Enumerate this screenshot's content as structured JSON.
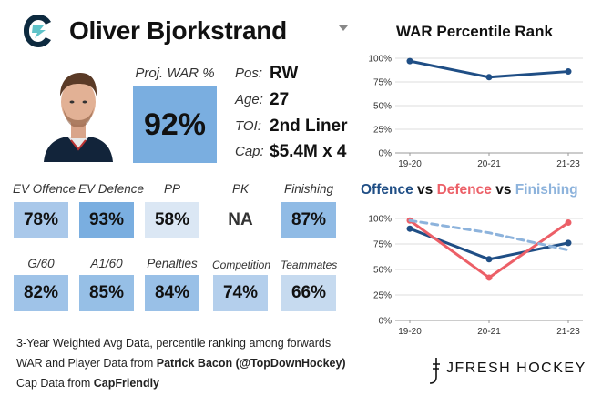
{
  "header": {
    "player_name": "Oliver Bjorkstrand",
    "team_logo_icon": "kraken-logo-icon",
    "dropdown_icon": "chevron-down-icon"
  },
  "projected_war": {
    "label": "Proj. WAR %",
    "value": "92%"
  },
  "player_info": [
    {
      "label": "Pos:",
      "value": "RW"
    },
    {
      "label": "Age:",
      "value": "27"
    },
    {
      "label": "TOI:",
      "value": "2nd Liner"
    },
    {
      "label": "Cap:",
      "value": "$5.4M x 4"
    }
  ],
  "metrics_row1": [
    {
      "label": "EV Offence",
      "value": "78%",
      "color": "#a9c8ea"
    },
    {
      "label": "EV Defence",
      "value": "93%",
      "color": "#7aaee0"
    },
    {
      "label": "PP",
      "value": "58%",
      "color": "#dbe7f4"
    },
    {
      "label": "PK",
      "value": "NA",
      "color": "#ffffff"
    },
    {
      "label": "Finishing",
      "value": "87%",
      "color": "#90bbe5"
    }
  ],
  "metrics_row2": [
    {
      "label": "G/60",
      "value": "82%",
      "color": "#9fc3e8"
    },
    {
      "label": "A1/60",
      "value": "85%",
      "color": "#96bfe6"
    },
    {
      "label": "Penalties",
      "value": "84%",
      "color": "#99c0e7"
    },
    {
      "label": "Competition",
      "value": "74%",
      "color": "#b4cfec"
    },
    {
      "label": "Teammates",
      "value": "66%",
      "color": "#c6daef"
    }
  ],
  "footer": {
    "line1": "3-Year Weighted Avg Data, percentile ranking among forwards",
    "line2_prefix": "WAR and Player Data from ",
    "line2_bold": "Patrick Bacon (@TopDownHockey)",
    "line3_prefix": "Cap Data from ",
    "line3_bold": "CapFriendly",
    "brand": "JFRESH HOCKEY"
  },
  "colors": {
    "offence": "#1f4e85",
    "defence": "#ec5f67",
    "finishing": "#8db3dc"
  },
  "chart_data": [
    {
      "type": "line",
      "title": "WAR Percentile Rank",
      "categories": [
        "19-20",
        "20-21",
        "21-23"
      ],
      "y_ticks": [
        "0%",
        "25%",
        "50%",
        "75%",
        "100%"
      ],
      "ylim": [
        0,
        100
      ],
      "grid": true,
      "series": [
        {
          "values": [
            97,
            80,
            86
          ],
          "color": "#1f4e85",
          "style": "solid"
        }
      ]
    },
    {
      "type": "line",
      "title_parts": [
        {
          "text": "Offence",
          "color": "#1f4e85"
        },
        {
          "text": " vs ",
          "color": "#111111"
        },
        {
          "text": "Defence",
          "color": "#ec5f67"
        },
        {
          "text": " vs ",
          "color": "#111111"
        },
        {
          "text": "Finishing",
          "color": "#8db3dc"
        }
      ],
      "categories": [
        "19-20",
        "20-21",
        "21-23"
      ],
      "y_ticks": [
        "0%",
        "25%",
        "50%",
        "75%",
        "100%"
      ],
      "ylim": [
        0,
        100
      ],
      "grid": true,
      "series": [
        {
          "name": "Offence",
          "values": [
            90,
            60,
            76
          ],
          "color": "#1f4e85",
          "style": "solid"
        },
        {
          "name": "Defence",
          "values": [
            98,
            42,
            96
          ],
          "color": "#ec5f67",
          "style": "solid"
        },
        {
          "name": "Finishing",
          "values": [
            98,
            86,
            69
          ],
          "color": "#8db3dc",
          "style": "dashed"
        }
      ]
    }
  ]
}
